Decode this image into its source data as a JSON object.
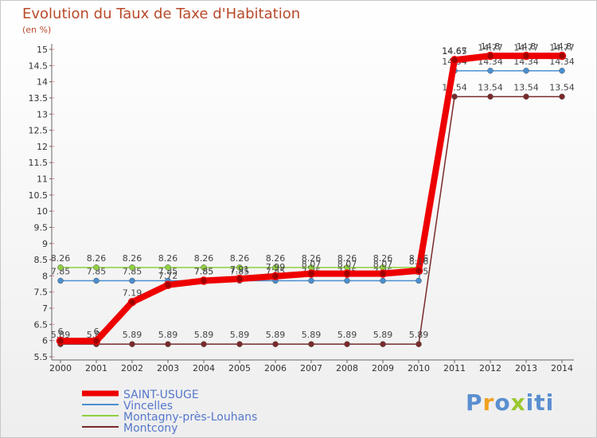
{
  "header": {
    "title": "Evolution du Taux de Taxe d'Habitation",
    "subtitle": "(en %)"
  },
  "logo": {
    "text": "Proxiti",
    "colors": [
      "#5a8fd0",
      "#f0a020",
      "#5a8fd0",
      "#9ac830",
      "#5a8fd0",
      "#5a8fd0",
      "#5a8fd0"
    ]
  },
  "chart_data": {
    "type": "line",
    "ylabel": "(en %)",
    "x": [
      "2000",
      "2001",
      "2002",
      "2003",
      "2004",
      "2005",
      "2006",
      "2007",
      "2008",
      "2009",
      "2010",
      "2011",
      "2012",
      "2013",
      "2014"
    ],
    "ylim": [
      5.5,
      15
    ],
    "yticks": [
      "5.5",
      "6",
      "6.5",
      "7",
      "7.5",
      "8",
      "8.5",
      "9",
      "9.5",
      "10",
      "10.5",
      "11",
      "11.5",
      "12",
      "12.5",
      "13",
      "13.5",
      "14",
      "14.5",
      "15"
    ],
    "grid": "none",
    "legend_position": "bottom-left",
    "series": [
      {
        "name": "Montcony",
        "color": "#7a2a2a",
        "values": [
          5.89,
          5.89,
          5.89,
          5.89,
          5.89,
          5.89,
          5.89,
          5.89,
          5.89,
          5.89,
          5.89,
          13.54,
          13.54,
          13.54,
          13.54
        ],
        "labels": [
          "5.89",
          "5.89",
          "5.89",
          "5.89",
          "5.89",
          "5.89",
          "5.89",
          "5.89",
          "5.89",
          "5.89",
          "5.89",
          "13.54",
          "13.54",
          "13.54",
          "13.54"
        ]
      },
      {
        "name": "Vincelles",
        "color": "#4a8fd0",
        "values": [
          7.85,
          7.85,
          7.85,
          7.85,
          7.85,
          7.85,
          7.85,
          7.85,
          7.85,
          7.85,
          7.85,
          14.34,
          14.34,
          14.34,
          14.34
        ],
        "labels": [
          "7.85",
          "7.85",
          "7.85",
          "7.85",
          "7.85",
          "7.85",
          "7.85",
          "7.85",
          "7.85",
          "7.85",
          "7.85",
          "14.34",
          "14.34",
          "14.34",
          "14.34"
        ]
      },
      {
        "name": "Montagny-près-Louhans",
        "color": "#90d040",
        "values": [
          8.26,
          8.26,
          8.26,
          8.26,
          8.26,
          8.26,
          8.26,
          8.26,
          8.26,
          8.26,
          8.26,
          14.65,
          14.77,
          14.77,
          14.77
        ],
        "labels": [
          "8.26",
          "8.26",
          "8.26",
          "8.26",
          "8.26",
          "8.26",
          "8.26",
          "8.26",
          "8.26",
          "8.26",
          "8.26",
          "14.65",
          "14.77",
          "14.77",
          "14.77"
        ]
      },
      {
        "name": "SAINT-USUGE",
        "color": "#ee0000",
        "values": [
          5.99,
          5.99,
          7.19,
          7.72,
          7.85,
          7.91,
          7.99,
          8.07,
          8.07,
          8.07,
          8.16,
          14.67,
          14.8,
          14.8,
          14.8
        ],
        "labels": [
          "6",
          "6",
          "7.19",
          "7.72",
          "7.85",
          "7.91",
          "7.99",
          "8.07",
          "8.07",
          "8.07",
          "8.16",
          "14.67",
          "14.8",
          "14.8",
          "14.8"
        ]
      }
    ]
  }
}
